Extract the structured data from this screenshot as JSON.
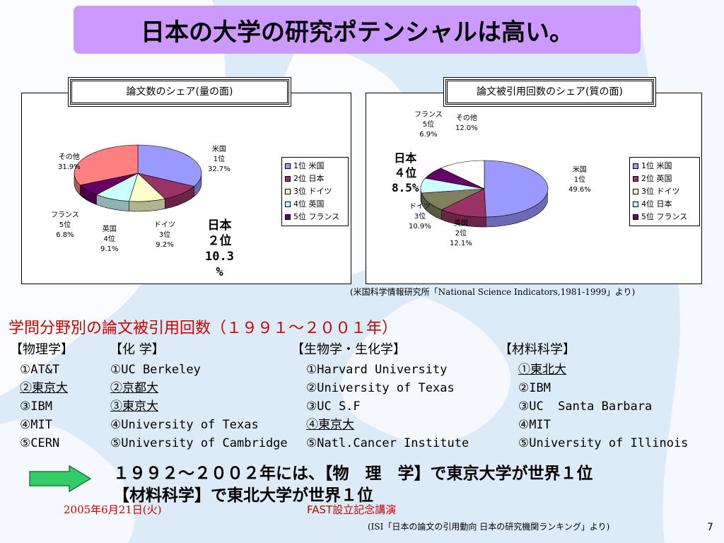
{
  "slide": {
    "title": "日本の大学の研究ポテンシャルは高い。",
    "page_number": "7",
    "date": "2005年6月21日(火)",
    "event": "FAST設立記念講演"
  },
  "chart_left": {
    "title": "論文数のシェア(量の面)",
    "japan_callout": [
      "日本",
      "２位",
      "10.3",
      "%"
    ],
    "labels": {
      "us": [
        "米国",
        "1位",
        "32.7%"
      ],
      "other": [
        "その他",
        "31.9%"
      ],
      "france": [
        "フランス",
        "5位",
        "6.8%"
      ],
      "uk": [
        "英国",
        "4位",
        "9.1%"
      ],
      "germany": [
        "ドイツ",
        "3位",
        "9.2%"
      ]
    }
  },
  "chart_right": {
    "title": "論文被引用回数のシェア(質の面)",
    "japan_callout": [
      "日本",
      "４位",
      "8.5%"
    ],
    "labels": {
      "us": [
        "米国",
        "1位",
        "49.6%"
      ],
      "uk": [
        "英国",
        "2位",
        "12.1%"
      ],
      "germany": [
        "ドイツ",
        "3位",
        "10.9%"
      ],
      "france": [
        "フランス",
        "5位",
        "6.9%"
      ],
      "other": [
        "その他",
        "12.0%"
      ]
    }
  },
  "chart_data": [
    {
      "type": "pie",
      "title": "論文数のシェア(量の面)",
      "categories": [
        "1位 米国",
        "2位 日本",
        "3位 ドイツ",
        "4位 英国",
        "5位 フランス",
        "その他"
      ],
      "values": [
        32.7,
        10.3,
        9.2,
        9.1,
        6.8,
        31.9
      ],
      "colors": [
        "#9999ff",
        "#993366",
        "#ffffcc",
        "#ccffff",
        "#660066",
        "#ff8080"
      ],
      "legend": [
        "1位 米国",
        "2位 日本",
        "3位 ドイツ",
        "4位 英国",
        "5位 フランス"
      ],
      "legend_colors": [
        "#9999ff",
        "#993366",
        "#ffffcc",
        "#ccffff",
        "#660066"
      ],
      "legend_position": "right"
    },
    {
      "type": "pie",
      "title": "論文被引用回数のシェア(質の面)",
      "categories": [
        "1位 米国",
        "2位 英国",
        "3位 ドイツ",
        "4位 日本",
        "5位 フランス",
        "その他"
      ],
      "values": [
        49.6,
        12.1,
        10.9,
        8.5,
        6.9,
        12.0
      ],
      "colors": [
        "#9999ff",
        "#993366",
        "#808060",
        "#ccffff",
        "#660066",
        "#ffffff"
      ],
      "legend": [
        "1位 米国",
        "2位 英国",
        "3位 ドイツ",
        "4位 日本",
        "5位 フランス"
      ],
      "legend_colors": [
        "#9999ff",
        "#993366",
        "#ffffcc",
        "#ccffff",
        "#660066"
      ],
      "legend_position": "right"
    }
  ],
  "source_note": "(米国科学情報研究所「National Science Indicators,1981-1999」より)",
  "section_heading": "学問分野別の論文被引用回数（１９９１～２００１年）",
  "fields": [
    {
      "heading": "【物理学】",
      "items": [
        "①AT&T",
        "②東京大",
        "③IBM",
        "④MIT",
        "⑤CERN"
      ]
    },
    {
      "heading": "【化 学】",
      "items": [
        "①UC Berkeley",
        "②京都大",
        "③東京大",
        "④University of Texas",
        "⑤University of Cambridge"
      ]
    },
    {
      "heading": "【生物学・生化学】",
      "items": [
        "①Harvard University",
        "②University of Texas",
        "③UC S.F",
        "④東京大",
        "⑤Natl.Cancer Institute"
      ]
    },
    {
      "heading": "【材料科学】",
      "items": [
        "①東北大",
        "②IBM",
        "③UC  Santa Barbara",
        "④MIT",
        "⑤University of Illinois"
      ]
    }
  ],
  "conclusion": "１９９２～２００２年には、【物　理　学】で東京大学が世界１位　　　　　　　　【材料科学】で東北大学が世界１位",
  "source_note2": "(ISI「日本の論文の引用動向 日本の研究機関ランキング」より)",
  "colors": {
    "title_bg": "#cc99ff",
    "accent_red": "#cc0000",
    "arrow_green": "#33cc66"
  }
}
